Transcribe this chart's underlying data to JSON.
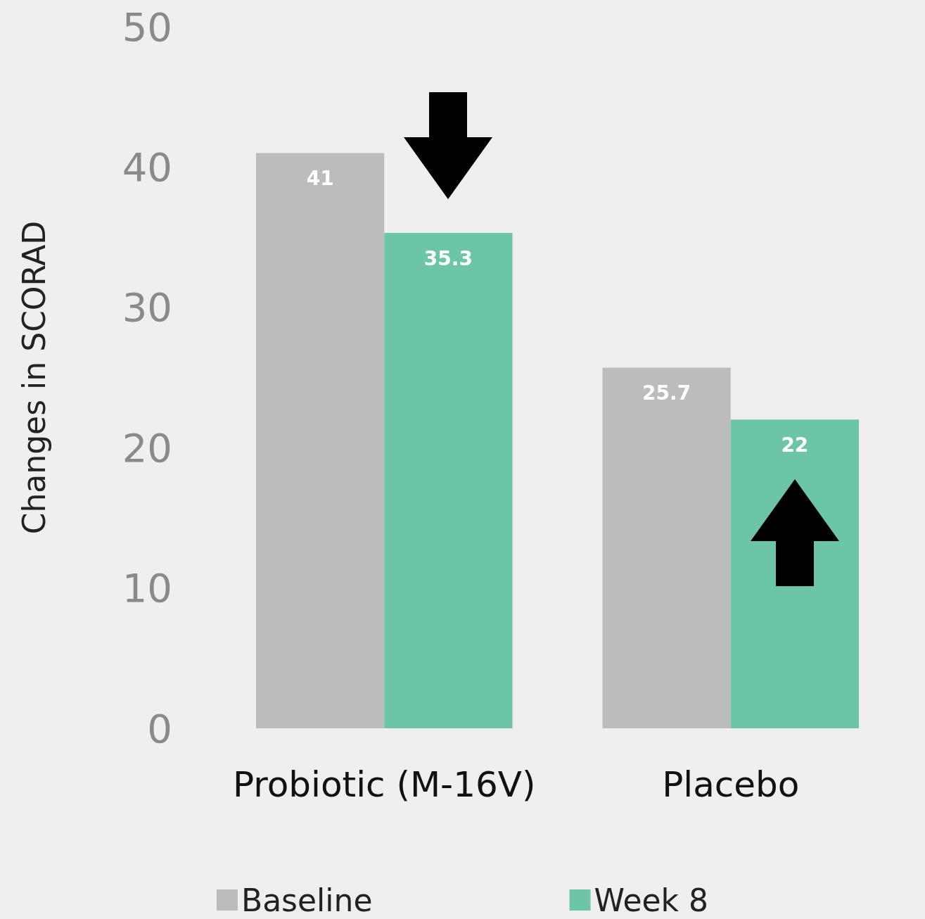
{
  "chart_data": {
    "type": "bar",
    "ylabel": "Changes in SCORAD",
    "categories": [
      "Probiotic (M-16V)",
      "Placebo"
    ],
    "series": [
      {
        "name": "Baseline",
        "color": "#bcbcbc",
        "values": [
          41,
          25.7
        ]
      },
      {
        "name": "Week 8",
        "color": "#6cc5a7",
        "values": [
          35.3,
          22
        ]
      }
    ],
    "ylim": [
      0,
      50
    ],
    "yticks": [
      0,
      10,
      20,
      30,
      40,
      50
    ],
    "grid": false,
    "legend": "bottom",
    "data_labels": true
  }
}
